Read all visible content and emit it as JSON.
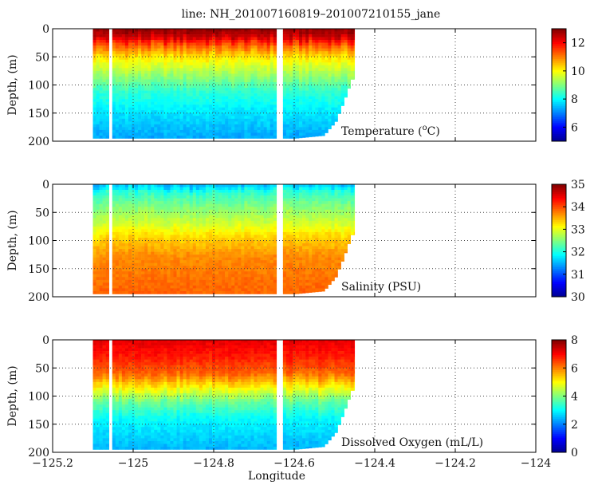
{
  "title": "line: NH_201007160819–201007210155_jane",
  "chart_data": [
    {
      "type": "heatmap",
      "variable": "Temperature",
      "label_main": "Temperature (",
      "label_sup": "o",
      "label_end": "C)",
      "ylabel": "Depth, (m)",
      "xlim": [
        -125.2,
        -124.0
      ],
      "ylim": [
        200,
        0
      ],
      "y_ticks": [
        0,
        50,
        100,
        150,
        200
      ],
      "y_tick_labels": [
        "0",
        "50",
        "100",
        "150",
        "200"
      ],
      "colorbar": {
        "range": [
          5,
          13
        ],
        "ticks": [
          6,
          8,
          10,
          12
        ],
        "tick_labels": [
          "6",
          "8",
          "10",
          "12"
        ]
      },
      "profile_levels": [
        {
          "depth": 0,
          "value": 12.9
        },
        {
          "depth": 15,
          "value": 12.4
        },
        {
          "depth": 30,
          "value": 11.3
        },
        {
          "depth": 50,
          "value": 10.2
        },
        {
          "depth": 80,
          "value": 9.3
        },
        {
          "depth": 110,
          "value": 8.4
        },
        {
          "depth": 150,
          "value": 7.8
        },
        {
          "depth": 195,
          "value": 7.3
        }
      ]
    },
    {
      "type": "heatmap",
      "variable": "Salinity",
      "label_main": "Salinity (PSU)",
      "label_sup": "",
      "label_end": "",
      "ylabel": "Depth, (m)",
      "xlim": [
        -125.2,
        -124.0
      ],
      "ylim": [
        200,
        0
      ],
      "y_ticks": [
        0,
        50,
        100,
        150,
        200
      ],
      "y_tick_labels": [
        "0",
        "50",
        "100",
        "150",
        "200"
      ],
      "colorbar": {
        "range": [
          30,
          35
        ],
        "ticks": [
          30,
          31,
          32,
          33,
          34,
          35
        ],
        "tick_labels": [
          "30",
          "31",
          "32",
          "33",
          "34",
          "35"
        ]
      },
      "profile_levels": [
        {
          "depth": 0,
          "value": 31.5
        },
        {
          "depth": 15,
          "value": 32.1
        },
        {
          "depth": 40,
          "value": 32.5
        },
        {
          "depth": 70,
          "value": 32.9
        },
        {
          "depth": 100,
          "value": 33.4
        },
        {
          "depth": 130,
          "value": 33.7
        },
        {
          "depth": 195,
          "value": 33.9
        }
      ]
    },
    {
      "type": "heatmap",
      "variable": "Dissolved Oxygen",
      "label_main": "Dissolved Oxygen (mL/L)",
      "label_sup": "",
      "label_end": "",
      "ylabel": "Depth, (m)",
      "xlabel": "Longitude",
      "xlim": [
        -125.2,
        -124.0
      ],
      "ylim": [
        200,
        0
      ],
      "x_ticks": [
        -125.2,
        -125.0,
        -124.8,
        -124.6,
        -124.4,
        -124.2,
        -124.0
      ],
      "x_tick_labels": [
        "−125.2",
        "−125",
        "−124.8",
        "−124.6",
        "−124.4",
        "−124.2",
        "−124"
      ],
      "y_ticks": [
        0,
        50,
        100,
        150,
        200
      ],
      "y_tick_labels": [
        "0",
        "50",
        "100",
        "150",
        "200"
      ],
      "colorbar": {
        "range": [
          0,
          8
        ],
        "ticks": [
          0,
          2,
          4,
          6,
          8
        ],
        "tick_labels": [
          "0",
          "2",
          "4",
          "6",
          "8"
        ]
      },
      "profile_levels": [
        {
          "depth": 0,
          "value": 7.2
        },
        {
          "depth": 30,
          "value": 6.8
        },
        {
          "depth": 60,
          "value": 6.2
        },
        {
          "depth": 85,
          "value": 5.0
        },
        {
          "depth": 110,
          "value": 3.8
        },
        {
          "depth": 140,
          "value": 3.0
        },
        {
          "depth": 195,
          "value": 2.4
        }
      ]
    }
  ],
  "glider_track": {
    "lon_start": -125.1,
    "lon_end": -124.45,
    "gaps": [
      -125.06,
      -124.64
    ],
    "bottom_depth": [
      {
        "lon": -125.1,
        "depth": 195
      },
      {
        "lon": -124.6,
        "depth": 195
      },
      {
        "lon": -124.53,
        "depth": 190
      },
      {
        "lon": -124.5,
        "depth": 165
      },
      {
        "lon": -124.48,
        "depth": 130
      },
      {
        "lon": -124.46,
        "depth": 90
      },
      {
        "lon": -124.45,
        "depth": 90
      }
    ]
  },
  "colormap": [
    "#00008f",
    "#0000ff",
    "#0080ff",
    "#00ffff",
    "#80ff80",
    "#ffff00",
    "#ff8000",
    "#ff0000",
    "#800000"
  ]
}
